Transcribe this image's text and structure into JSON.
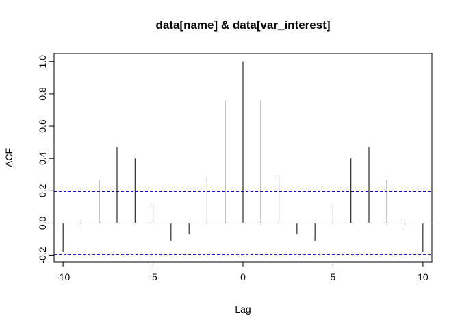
{
  "chart_data": {
    "type": "bar",
    "title": "data[name] & data[var_interest]",
    "xlabel": "Lag",
    "ylabel": "ACF",
    "xlim": [
      -10.5,
      10.5
    ],
    "ylim": [
      -0.24,
      1.05
    ],
    "x_ticks": [
      -10,
      -5,
      0,
      5,
      10
    ],
    "x_tick_labels": [
      "-10",
      "-5",
      "0",
      "5",
      "10"
    ],
    "y_ticks": [
      -0.2,
      0.0,
      0.2,
      0.4,
      0.6,
      0.8,
      1.0
    ],
    "y_tick_labels": [
      "-0.2",
      "0.0",
      "0.2",
      "0.4",
      "0.6",
      "0.8",
      "1.0"
    ],
    "lags": [
      -10,
      -9,
      -8,
      -7,
      -6,
      -5,
      -4,
      -3,
      -2,
      -1,
      0,
      1,
      2,
      3,
      4,
      5,
      6,
      7,
      8,
      9,
      10
    ],
    "acf": [
      -0.18,
      -0.02,
      0.27,
      0.47,
      0.4,
      0.12,
      -0.11,
      -0.07,
      0.29,
      0.76,
      1.0,
      0.76,
      0.29,
      -0.07,
      -0.11,
      0.12,
      0.4,
      0.47,
      0.27,
      -0.02,
      -0.18
    ],
    "confidence_bounds": [
      0.195,
      -0.195
    ],
    "grid": false,
    "colors": {
      "lines": "#000000",
      "bounds": "#0000cd"
    }
  }
}
